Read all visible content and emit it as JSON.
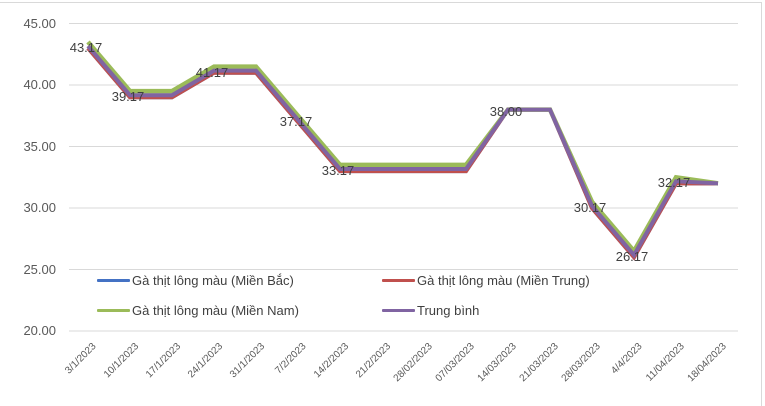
{
  "chart_data": {
    "type": "line",
    "title": "",
    "xlabel": "",
    "ylabel": "",
    "ylim": [
      20,
      45
    ],
    "y_ticks": [
      "20.00",
      "25.00",
      "30.00",
      "35.00",
      "40.00",
      "45.00"
    ],
    "grid": true,
    "legend_position": "inside-bottom",
    "categories": [
      "3/1/2023",
      "10/1/2023",
      "17/1/2023",
      "24/1/2023",
      "31/1/2023",
      "7/2/2023",
      "14/2/2023",
      "21/2/2023",
      "28/02/2023",
      "07/03/2023",
      "14/03/2023",
      "21/03/2023",
      "28/03/2023",
      "4/4/2023",
      "11/04/2023",
      "18/04/2023"
    ],
    "series": [
      {
        "name": "Gà thịt lông màu (Miền Bắc)",
        "color": "#4472c4",
        "values": [
          43.0,
          39.0,
          39.0,
          41.0,
          41.0,
          37.0,
          33.0,
          33.0,
          33.0,
          33.0,
          38.0,
          38.0,
          30.0,
          26.0,
          32.0,
          32.0
        ]
      },
      {
        "name": "Gà thịt lông màu (Miền Trung)",
        "color": "#c0504d",
        "values": [
          43.0,
          39.0,
          39.0,
          41.0,
          41.0,
          37.0,
          33.0,
          33.0,
          33.0,
          33.0,
          38.0,
          38.0,
          30.0,
          26.0,
          32.0,
          32.0
        ]
      },
      {
        "name": "Gà thịt lông màu (Miền Nam)",
        "color": "#9bbb59",
        "values": [
          43.5,
          39.5,
          39.5,
          41.5,
          41.5,
          37.5,
          33.5,
          33.5,
          33.5,
          33.5,
          38.0,
          38.0,
          30.5,
          26.5,
          32.5,
          32.0
        ]
      },
      {
        "name": "Trung bình",
        "color": "#8064a2",
        "values": [
          43.17,
          39.17,
          39.17,
          41.17,
          41.17,
          37.17,
          33.17,
          33.17,
          33.17,
          33.17,
          38.0,
          38.0,
          30.17,
          26.17,
          32.17,
          32.0
        ]
      }
    ],
    "data_labels": [
      {
        "index": 0,
        "text": "43.17"
      },
      {
        "index": 1,
        "text": "39.17"
      },
      {
        "index": 3,
        "text": "41.17"
      },
      {
        "index": 5,
        "text": "37.17"
      },
      {
        "index": 6,
        "text": "33.17"
      },
      {
        "index": 10,
        "text": "38.00"
      },
      {
        "index": 12,
        "text": "30.17"
      },
      {
        "index": 13,
        "text": "26.17"
      },
      {
        "index": 14,
        "text": "32.17"
      }
    ]
  },
  "legend": {
    "items": [
      {
        "label": "Gà thịt lông màu (Miền Bắc)",
        "color": "#4472c4"
      },
      {
        "label": "Gà thịt lông màu (Miền Trung)",
        "color": "#c0504d"
      },
      {
        "label": "Gà thịt lông màu (Miền Nam)",
        "color": "#9bbb59"
      },
      {
        "label": "Trung bình",
        "color": "#8064a2"
      }
    ]
  },
  "colors": {
    "gridline": "#d9d9d9",
    "axis_text": "#595959",
    "label_text": "#404040"
  }
}
